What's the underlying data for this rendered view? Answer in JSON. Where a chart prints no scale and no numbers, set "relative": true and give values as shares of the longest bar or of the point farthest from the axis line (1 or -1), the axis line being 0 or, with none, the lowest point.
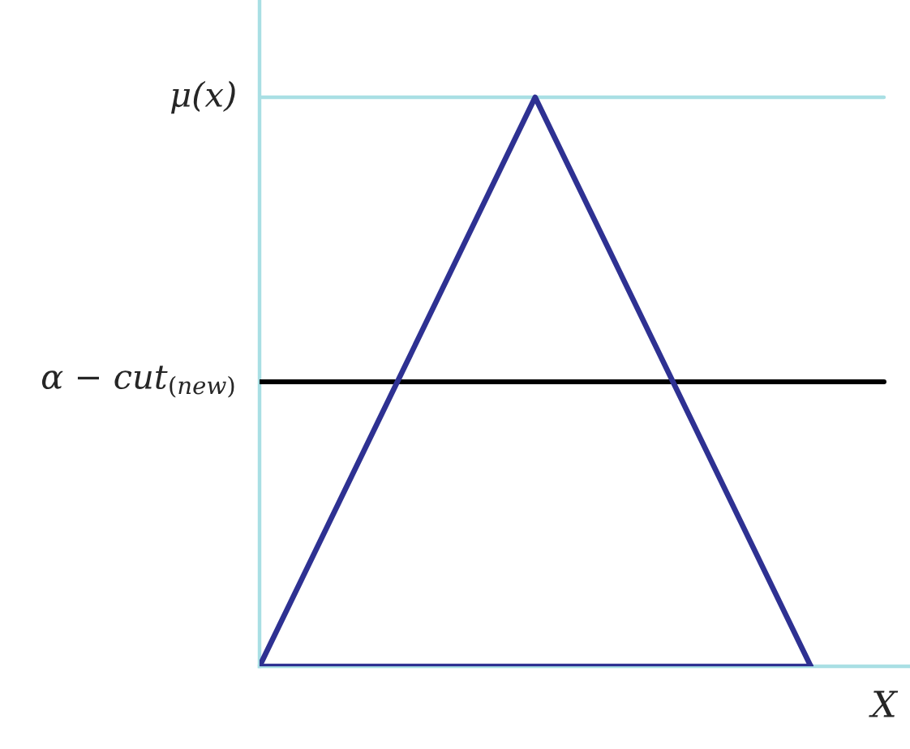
{
  "chart_data": {
    "type": "line",
    "categories": [
      null,
      null,
      null
    ],
    "relative": true,
    "series": [
      {
        "color": "#2e3192",
        "values": [
          0,
          1,
          0
        ]
      },
      {
        "color": "#2e3192",
        "values": [
          0,
          0,
          0
        ]
      }
    ],
    "xlabel": "X",
    "ref_lines": [
      {
        "axis": "y",
        "value": 1,
        "label": "μ(x)",
        "color": "#a9dfe4"
      },
      {
        "axis": "y",
        "value": 0.5,
        "label": "α − cut$_{(new)}$",
        "color": "#000000"
      }
    ],
    "marker": "none",
    "line_style": "solid"
  }
}
